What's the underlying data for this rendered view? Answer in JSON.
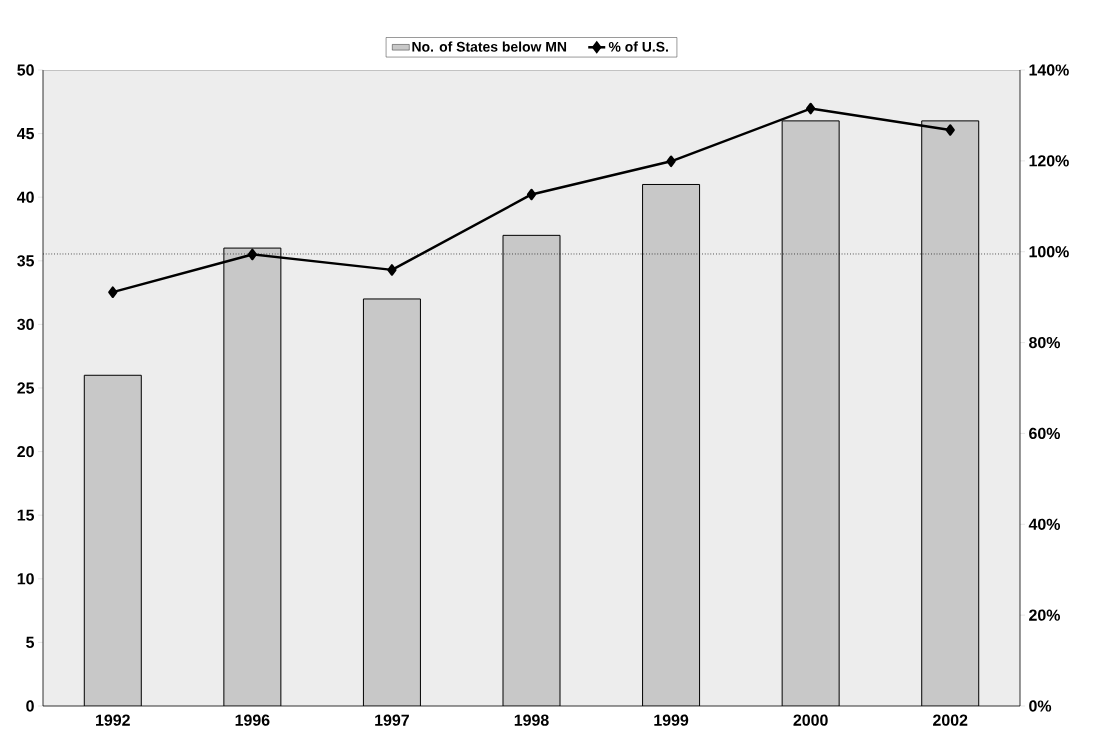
{
  "chart_data": {
    "type": "bar",
    "categories": [
      "1992",
      "1996",
      "1997",
      "1998",
      "1999",
      "2000",
      "2002"
    ],
    "series": [
      {
        "name": "No. of States below MN",
        "color": "#c8c8c8",
        "values": [
          26,
          36,
          32,
          37,
          41,
          46,
          46
        ]
      },
      {
        "name": "% of U.S.",
        "type": "line",
        "axis": "y2",
        "color": "#000000",
        "marker": "diamond",
        "values": [
          91.1,
          99.4,
          96.0,
          112.6,
          119.9,
          131.5,
          126.8
        ]
      }
    ],
    "ylim": [
      0,
      50
    ],
    "yticks": [
      0,
      5,
      10,
      15,
      20,
      25,
      30,
      35,
      40,
      45,
      50
    ],
    "y2lim": [
      0,
      140
    ],
    "y2ticks": [
      {
        "value": 0,
        "label": "0%"
      },
      {
        "value": 20,
        "label": "20%"
      },
      {
        "value": 40,
        "label": "40%"
      },
      {
        "value": 60,
        "label": "60%"
      },
      {
        "value": 80,
        "label": "80%"
      },
      {
        "value": 100,
        "label": "100%"
      },
      {
        "value": 120,
        "label": "120%"
      },
      {
        "value": 140,
        "label": "140%"
      }
    ],
    "ref_lines": [
      {
        "axis": "y2",
        "value": 99.5,
        "line_style": "dotted",
        "color": "#000000"
      }
    ],
    "legend": "top"
  }
}
